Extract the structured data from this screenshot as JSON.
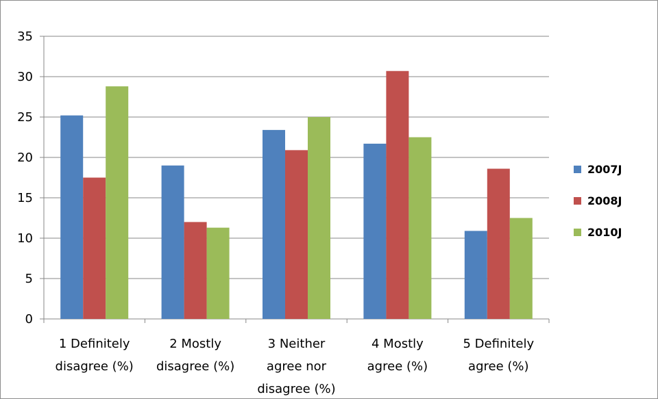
{
  "chart_data": {
    "type": "bar",
    "title": "",
    "xlabel": "",
    "ylabel": "",
    "ylim": [
      0,
      35
    ],
    "yticks": [
      0,
      5,
      10,
      15,
      20,
      25,
      30,
      35
    ],
    "grid": true,
    "legend_position": "right",
    "categories": [
      [
        "1 Definitely",
        "disagree (%)"
      ],
      [
        "2 Mostly",
        "disagree (%)"
      ],
      [
        "3 Neither",
        "agree nor",
        "disagree (%)"
      ],
      [
        "4 Mostly",
        "agree (%)"
      ],
      [
        "5 Definitely",
        "agree (%)"
      ]
    ],
    "series": [
      {
        "name": "2007J",
        "color": "#4F81BD",
        "values": [
          25.2,
          19.0,
          23.4,
          21.7,
          10.9
        ]
      },
      {
        "name": "2008J",
        "color": "#C0504D",
        "values": [
          17.5,
          12.0,
          20.9,
          30.7,
          18.6
        ]
      },
      {
        "name": "2010J",
        "color": "#9BBB59",
        "values": [
          28.8,
          11.3,
          25.0,
          22.5,
          12.5
        ]
      }
    ]
  }
}
